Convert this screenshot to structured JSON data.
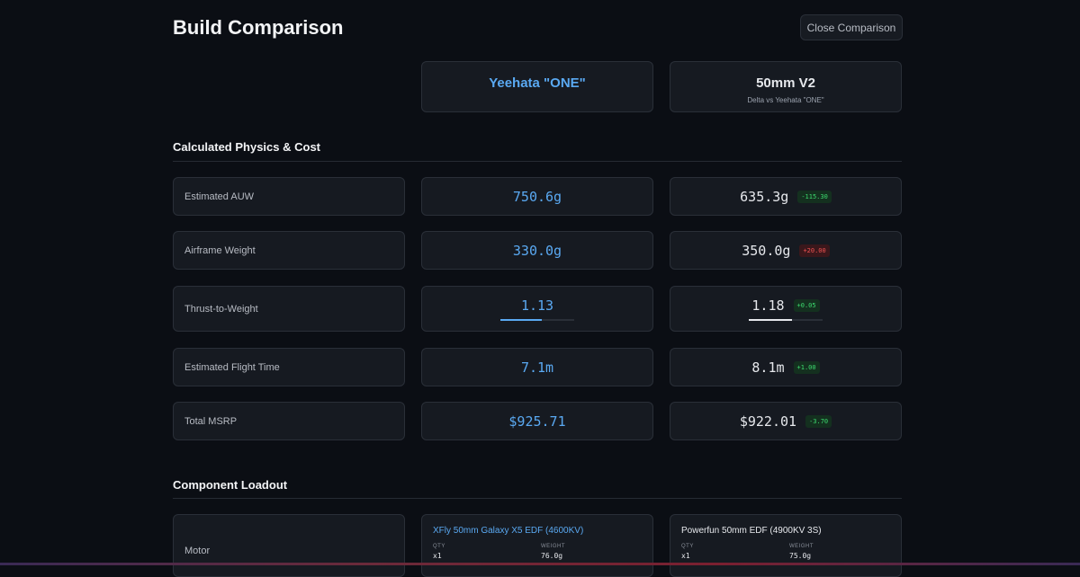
{
  "title": "Build Comparison",
  "close_label": "Close Comparison",
  "builds": [
    {
      "name": "Yeehata \"ONE\""
    },
    {
      "name": "50mm V2",
      "subtitle": "Delta vs Yeehata \"ONE\""
    }
  ],
  "sections": {
    "physics": "Calculated Physics & Cost",
    "components": "Component Loadout"
  },
  "metrics": [
    {
      "label": "Estimated AUW",
      "a": "750.6g",
      "b": "635.3g",
      "delta": "-115.30",
      "delta_good": true
    },
    {
      "label": "Airframe Weight",
      "a": "330.0g",
      "b": "350.0g",
      "delta": "+20.00",
      "delta_good": false
    },
    {
      "label": "Thrust-to-Weight",
      "a": "1.13",
      "b": "1.18",
      "delta": "+0.05",
      "delta_good": true,
      "a_fill_pct": 56.5,
      "b_fill_pct": 59
    },
    {
      "label": "Estimated Flight Time",
      "a": "7.1m",
      "b": "8.1m",
      "delta": "+1.00",
      "delta_good": true
    },
    {
      "label": "Total MSRP",
      "a": "$925.71",
      "b": "$922.01",
      "delta": "-3.70",
      "delta_good": true
    }
  ],
  "components": [
    {
      "label": "Motor",
      "a": {
        "name": "XFly 50mm Galaxy X5 EDF (4600KV)",
        "qty": "x1",
        "weight": "76.0g"
      },
      "b": {
        "name": "Powerfun 50mm EDF (4900KV 3S)",
        "qty": "x1",
        "weight": "75.0g"
      }
    }
  ],
  "meta_labels": {
    "qty": "QTY",
    "weight": "WEIGHT"
  },
  "colors": {
    "accent": "#5aa9f2",
    "good": "#3ddc6f",
    "bad": "#f05252"
  }
}
